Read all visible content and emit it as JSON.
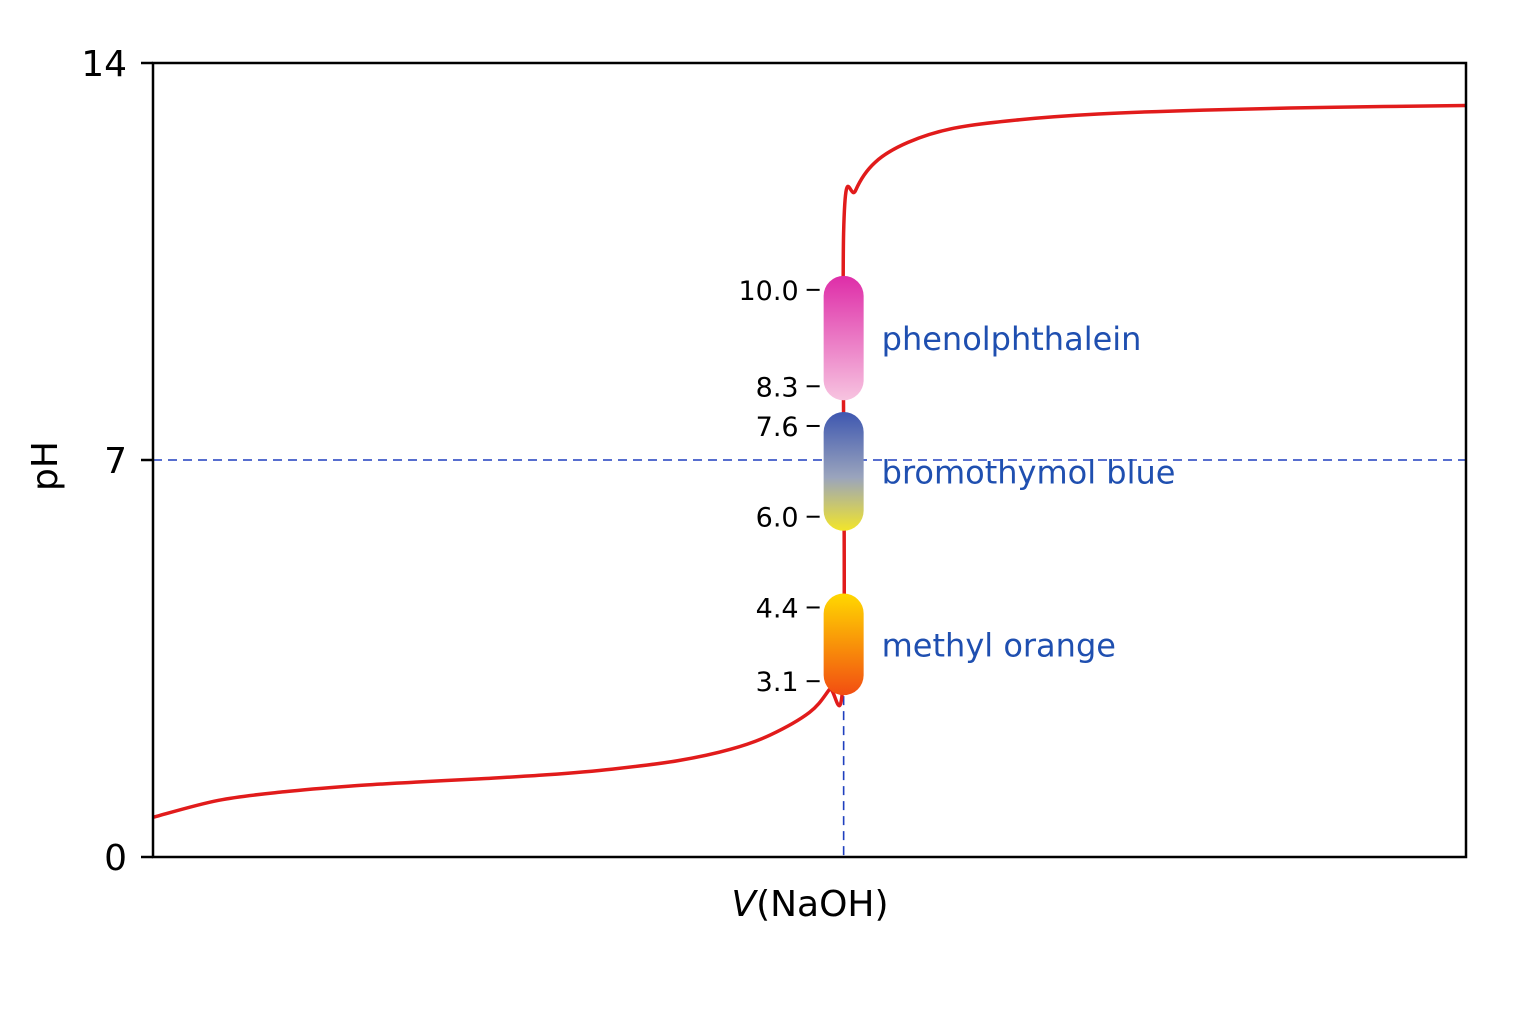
{
  "chart_data": {
    "type": "line",
    "xlabel_italic": "V",
    "xlabel_rest": "(NaOH)",
    "ylabel": "pH",
    "ylim": [
      0,
      14
    ],
    "y_ticks": [
      "0",
      "7",
      "14"
    ],
    "grid": false,
    "equivalence_point": {
      "x": 0.526,
      "y": 7
    },
    "colors": {
      "curve": "#e11b1b",
      "reference_line": "#1f3fbf",
      "indicator_label": "#1f4fb0"
    },
    "series": [
      {
        "points": [
          [
            0.0,
            0.7
          ],
          [
            0.05,
            1.0
          ],
          [
            0.1,
            1.15
          ],
          [
            0.15,
            1.25
          ],
          [
            0.2,
            1.32
          ],
          [
            0.25,
            1.38
          ],
          [
            0.3,
            1.45
          ],
          [
            0.35,
            1.55
          ],
          [
            0.4,
            1.7
          ],
          [
            0.44,
            1.9
          ],
          [
            0.47,
            2.15
          ],
          [
            0.5,
            2.55
          ],
          [
            0.515,
            2.95
          ],
          [
            0.526,
            3.35
          ],
          [
            0.526,
            11.0
          ],
          [
            0.535,
            11.75
          ],
          [
            0.55,
            12.25
          ],
          [
            0.575,
            12.6
          ],
          [
            0.61,
            12.85
          ],
          [
            0.66,
            13.0
          ],
          [
            0.72,
            13.1
          ],
          [
            0.8,
            13.17
          ],
          [
            0.9,
            13.22
          ],
          [
            1.0,
            13.25
          ]
        ]
      }
    ],
    "indicators": [
      {
        "name": "phenolphthalein",
        "low": "8.3",
        "high": "10.0",
        "low_value": 8.3,
        "high_value": 10.0,
        "color_low": "#f7c4e0",
        "color_high": "#de2da8"
      },
      {
        "name": "bromothymol blue",
        "low": "6.0",
        "high": "7.6",
        "low_value": 6.0,
        "high_value": 7.6,
        "color_low": "#f2e52a",
        "color_mid": "#9aa4bd",
        "color_high": "#3e57b0"
      },
      {
        "name": "methyl orange",
        "low": "3.1",
        "high": "4.4",
        "low_value": 3.1,
        "high_value": 4.4,
        "color_low": "#f24d12",
        "color_high": "#ffd800"
      }
    ]
  }
}
